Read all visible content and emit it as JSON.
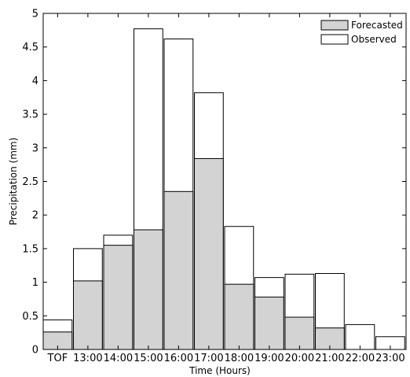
{
  "chart_data": {
    "type": "bar",
    "title": "",
    "xlabel": "Time (Hours)",
    "ylabel": "Precipitation (mm)",
    "ylim": [
      0,
      5
    ],
    "yticks": [
      "0",
      "0.5",
      "1",
      "1.5",
      "2",
      "2.5",
      "3",
      "3.5",
      "4",
      "4.5",
      "5"
    ],
    "categories": [
      "TOF",
      "13:00",
      "14:00",
      "15:00",
      "16:00",
      "17:00",
      "18:00",
      "19:00",
      "20:00",
      "21:00",
      "22:00",
      "23:00"
    ],
    "series": [
      {
        "name": "Observed",
        "values": [
          0.44,
          1.5,
          1.7,
          4.77,
          4.62,
          3.82,
          1.83,
          1.07,
          1.12,
          1.13,
          0.37,
          0.19
        ]
      },
      {
        "name": "Forecasted",
        "values": [
          0.26,
          1.02,
          1.55,
          1.78,
          2.35,
          2.84,
          0.97,
          0.78,
          0.48,
          0.32,
          0,
          0
        ]
      }
    ],
    "legend_position": "top-right",
    "grid": false,
    "colors": {
      "Forecasted": "#d3d3d3",
      "Observed": "#ffffff",
      "edge": "#000000"
    }
  }
}
